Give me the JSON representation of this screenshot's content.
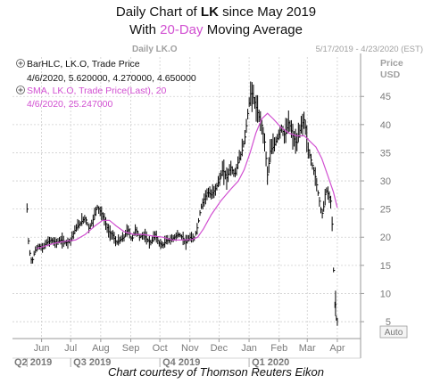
{
  "title": {
    "line1_prefix": "Daily Chart of ",
    "ticker": "LK",
    "line1_suffix": " since May 2019",
    "line2_prefix": "With ",
    "highlight": "20-Day",
    "line2_suffix": " Moving Average"
  },
  "header": {
    "instrument_label": "Daily LK.O",
    "date_range": "5/17/2019 - 4/23/2020 (EST)",
    "axis_unit_top": "Price",
    "axis_unit_bottom": "USD",
    "auto_button": "Auto"
  },
  "legend": {
    "series1_name": "BarHLC, LK.O, Trade Price",
    "series1_values": "4/6/2020, 5.620000, 4.270000, 4.650000",
    "series2_name": "SMA, LK.O, Trade Price(Last),  20",
    "series2_values": "4/6/2020, 25.247000"
  },
  "credit": "Chart courtesy of Thomson Reuters Eikon",
  "colors": {
    "bars": "#000000",
    "sma": "#d14fd1",
    "grid": "#cfcfcf",
    "axis_text": "#7a7a7a"
  },
  "chart_data": {
    "type": "bar",
    "subtype": "ohlc-hlc with moving average",
    "ylim": [
      2,
      52
    ],
    "y_ticks": [
      5,
      10,
      15,
      20,
      25,
      30,
      35,
      40,
      45
    ],
    "x_ticks": [
      {
        "label": "Jun",
        "day": 15
      },
      {
        "label": "Jul",
        "day": 45
      },
      {
        "label": "Aug",
        "day": 76
      },
      {
        "label": "Sep",
        "day": 107
      },
      {
        "label": "Oct",
        "day": 137
      },
      {
        "label": "Nov",
        "day": 168
      },
      {
        "label": "Dec",
        "day": 198
      },
      {
        "label": "Jan",
        "day": 229
      },
      {
        "label": "Feb",
        "day": 260
      },
      {
        "label": "Mar",
        "day": 289
      },
      {
        "label": "Apr",
        "day": 320
      }
    ],
    "quarters": [
      {
        "label": "Q2 2019",
        "day": 0
      },
      {
        "label": "Q3 2019",
        "day": 45
      },
      {
        "label": "Q4 2019",
        "day": 137
      },
      {
        "label": "Q1 2020",
        "day": 229
      }
    ],
    "x_days_domain": [
      -15,
      344
    ],
    "grid": true,
    "price_points": [
      [
        0,
        25.0
      ],
      [
        1,
        20.0
      ],
      [
        3,
        17.0
      ],
      [
        5,
        15.5
      ],
      [
        8,
        17.5
      ],
      [
        12,
        18.5
      ],
      [
        16,
        18.0
      ],
      [
        20,
        19.0
      ],
      [
        25,
        19.5
      ],
      [
        30,
        19.0
      ],
      [
        35,
        19.5
      ],
      [
        40,
        19.0
      ],
      [
        45,
        19.5
      ],
      [
        50,
        21.5
      ],
      [
        55,
        22.5
      ],
      [
        60,
        23.5
      ],
      [
        64,
        21.5
      ],
      [
        68,
        23.0
      ],
      [
        72,
        25.5
      ],
      [
        76,
        24.5
      ],
      [
        80,
        23.0
      ],
      [
        84,
        21.0
      ],
      [
        88,
        20.5
      ],
      [
        92,
        19.0
      ],
      [
        96,
        19.5
      ],
      [
        100,
        20.0
      ],
      [
        104,
        21.5
      ],
      [
        108,
        19.5
      ],
      [
        112,
        21.5
      ],
      [
        116,
        20.0
      ],
      [
        120,
        20.5
      ],
      [
        124,
        19.5
      ],
      [
        128,
        19.0
      ],
      [
        132,
        20.5
      ],
      [
        136,
        19.0
      ],
      [
        140,
        18.5
      ],
      [
        144,
        19.5
      ],
      [
        148,
        19.5
      ],
      [
        152,
        20.0
      ],
      [
        156,
        20.5
      ],
      [
        160,
        20.0
      ],
      [
        164,
        19.0
      ],
      [
        168,
        20.0
      ],
      [
        172,
        19.5
      ],
      [
        176,
        22.0
      ],
      [
        179,
        25.0
      ],
      [
        182,
        26.5
      ],
      [
        186,
        28.0
      ],
      [
        190,
        27.5
      ],
      [
        194,
        28.5
      ],
      [
        198,
        30.0
      ],
      [
        202,
        32.0
      ],
      [
        206,
        30.5
      ],
      [
        210,
        32.5
      ],
      [
        214,
        31.0
      ],
      [
        218,
        33.5
      ],
      [
        222,
        35.5
      ],
      [
        225,
        38.0
      ],
      [
        228,
        42.5
      ],
      [
        231,
        46.0
      ],
      [
        234,
        44.5
      ],
      [
        238,
        42.0
      ],
      [
        242,
        40.0
      ],
      [
        245,
        37.0
      ],
      [
        248,
        31.0
      ],
      [
        251,
        35.5
      ],
      [
        254,
        36.0
      ],
      [
        258,
        37.5
      ],
      [
        262,
        39.5
      ],
      [
        266,
        38.0
      ],
      [
        270,
        40.5
      ],
      [
        274,
        38.0
      ],
      [
        278,
        36.5
      ],
      [
        282,
        39.5
      ],
      [
        286,
        41.0
      ],
      [
        290,
        35.5
      ],
      [
        294,
        33.0
      ],
      [
        297,
        31.0
      ],
      [
        300,
        28.0
      ],
      [
        303,
        25.0
      ],
      [
        305,
        24.0
      ],
      [
        308,
        28.5
      ],
      [
        311,
        27.5
      ],
      [
        314,
        26.0
      ],
      [
        317,
        9.0
      ],
      [
        319,
        5.5
      ],
      [
        320,
        4.65
      ]
    ],
    "sma_points": [
      [
        10,
        18.0
      ],
      [
        20,
        18.5
      ],
      [
        30,
        19.0
      ],
      [
        40,
        19.3
      ],
      [
        50,
        19.5
      ],
      [
        60,
        20.5
      ],
      [
        70,
        22.0
      ],
      [
        78,
        23.0
      ],
      [
        85,
        23.0
      ],
      [
        92,
        22.0
      ],
      [
        100,
        21.0
      ],
      [
        110,
        20.5
      ],
      [
        120,
        20.5
      ],
      [
        130,
        20.2
      ],
      [
        140,
        20.0
      ],
      [
        150,
        19.5
      ],
      [
        160,
        19.5
      ],
      [
        170,
        19.6
      ],
      [
        176,
        20.0
      ],
      [
        182,
        21.5
      ],
      [
        190,
        24.0
      ],
      [
        200,
        26.5
      ],
      [
        210,
        28.5
      ],
      [
        218,
        30.0
      ],
      [
        224,
        32.0
      ],
      [
        230,
        35.0
      ],
      [
        236,
        38.5
      ],
      [
        242,
        41.0
      ],
      [
        248,
        42.0
      ],
      [
        254,
        41.0
      ],
      [
        262,
        39.5
      ],
      [
        270,
        38.5
      ],
      [
        278,
        38.0
      ],
      [
        286,
        38.0
      ],
      [
        292,
        37.0
      ],
      [
        298,
        36.0
      ],
      [
        304,
        34.0
      ],
      [
        310,
        31.0
      ],
      [
        316,
        28.0
      ],
      [
        320,
        25.247
      ]
    ],
    "last_bar": {
      "date": "4/6/2020",
      "high": 5.62,
      "low": 4.27,
      "close": 4.65
    },
    "last_sma": {
      "date": "4/6/2020",
      "value": 25.247,
      "period": 20
    }
  }
}
